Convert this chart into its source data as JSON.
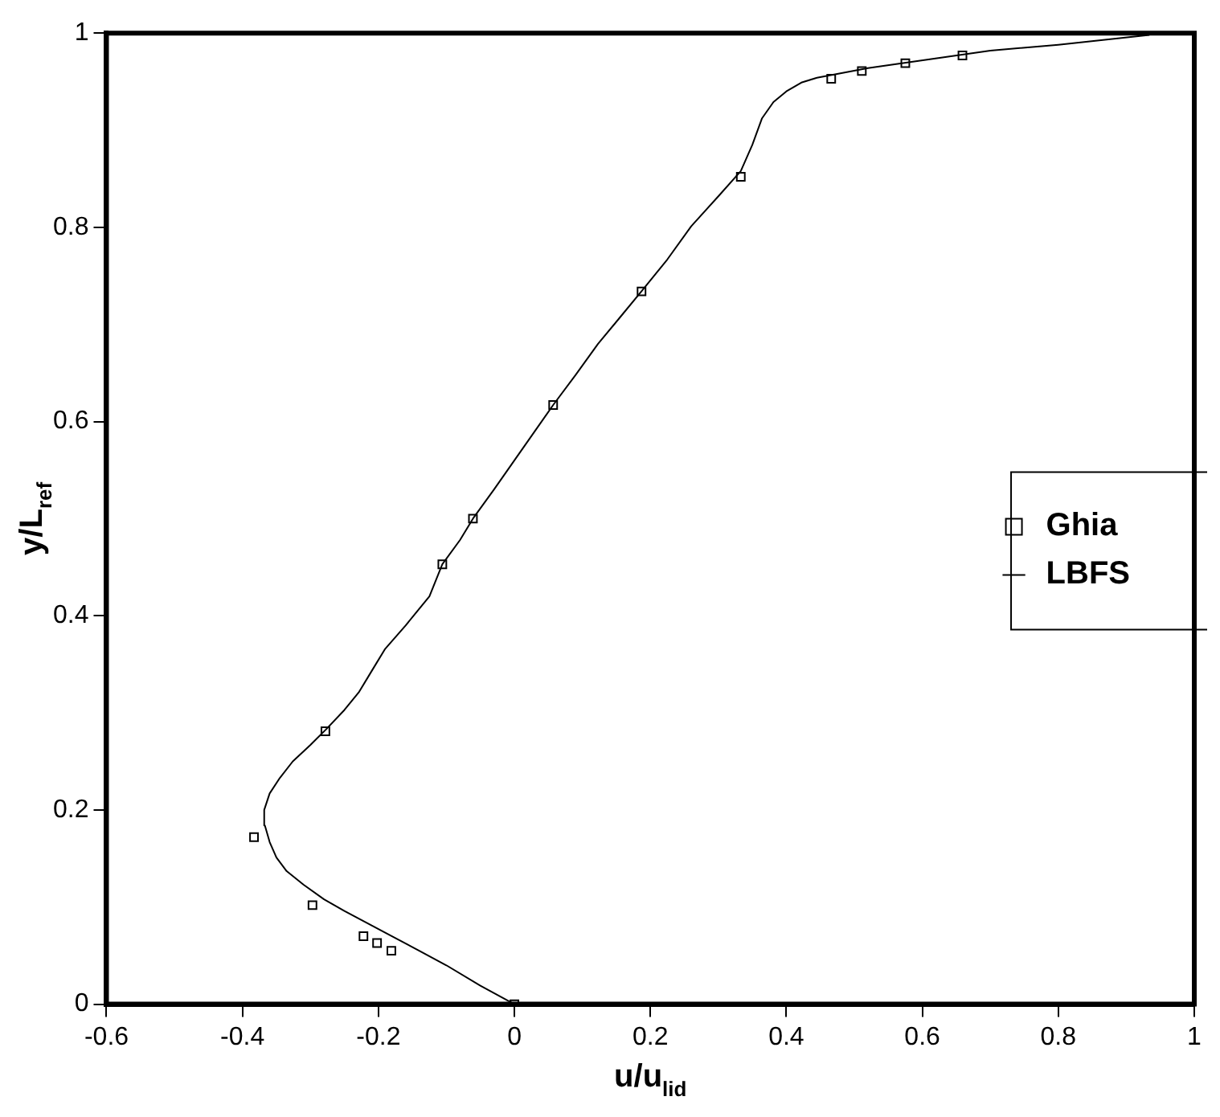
{
  "chart_data": {
    "type": "scatter",
    "xlabel": "u/u$_{lid}$",
    "ylabel": "y/L$_{ref}$",
    "xlim": [
      -0.6,
      1
    ],
    "xticks": [
      -0.6,
      -0.4,
      -0.2,
      0,
      0.2,
      0.4,
      0.6,
      0.8,
      1
    ],
    "ylim": [
      0,
      1
    ],
    "yticks": [
      0,
      0.2,
      0.4,
      0.6,
      0.8,
      1
    ],
    "grid": false,
    "legend": "right",
    "series": [
      {
        "name": "Ghia",
        "type": "scatter",
        "marker": "square",
        "color": "#000000",
        "x": [
          0.659,
          0.575,
          0.511,
          0.466,
          0.333,
          0.187,
          0.057,
          -0.061,
          -0.106,
          -0.278,
          -0.383,
          -0.297,
          -0.222,
          -0.202,
          -0.181,
          0
        ],
        "values": [
          0.977,
          0.969,
          0.961,
          0.953,
          0.852,
          0.734,
          0.617,
          0.5,
          0.453,
          0.281,
          0.172,
          0.102,
          0.07,
          0.063,
          0.055,
          0
        ]
      },
      {
        "name": "LBFS",
        "type": "line",
        "marker": "none",
        "line_style": "solid",
        "color": "#000000",
        "x": [
          0,
          -0.05,
          -0.1,
          -0.14,
          -0.18,
          -0.21,
          -0.25,
          -0.28,
          -0.31,
          -0.335,
          -0.35,
          -0.36,
          -0.367,
          -0.368,
          -0.36,
          -0.345,
          -0.326,
          -0.3,
          -0.277,
          -0.25,
          -0.229,
          -0.21,
          -0.19,
          -0.16,
          -0.125,
          -0.106,
          -0.08,
          -0.061,
          -0.03,
          0,
          0.03,
          0.057,
          0.09,
          0.123,
          0.155,
          0.188,
          0.225,
          0.26,
          0.3,
          0.333,
          0.35,
          0.364,
          0.381,
          0.4,
          0.422,
          0.445,
          0.467,
          0.52,
          0.58,
          0.64,
          0.7,
          0.8,
          0.934
        ],
        "values": [
          0,
          0.019,
          0.04,
          0.055,
          0.07,
          0.081,
          0.096,
          0.108,
          0.123,
          0.137,
          0.151,
          0.167,
          0.184,
          0.2,
          0.217,
          0.233,
          0.25,
          0.267,
          0.283,
          0.303,
          0.321,
          0.343,
          0.366,
          0.39,
          0.42,
          0.453,
          0.478,
          0.5,
          0.53,
          0.56,
          0.59,
          0.617,
          0.648,
          0.68,
          0.707,
          0.735,
          0.767,
          0.801,
          0.832,
          0.858,
          0.885,
          0.912,
          0.929,
          0.94,
          0.949,
          0.954,
          0.957,
          0.964,
          0.97,
          0.976,
          0.982,
          0.988,
          0.998
        ]
      }
    ]
  }
}
